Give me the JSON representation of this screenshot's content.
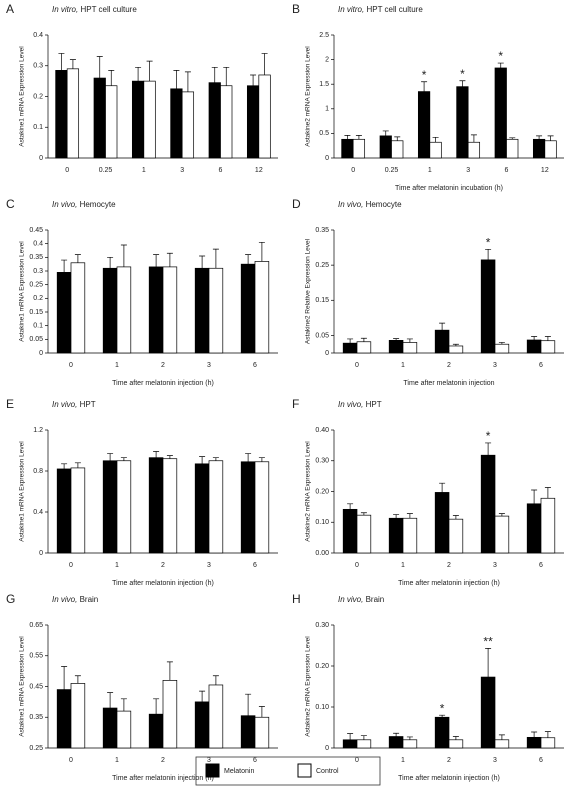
{
  "chart_data": [
    {
      "type": "bar",
      "panel": "A",
      "title_italic": "In vitro,",
      "title": "HPT cell culture",
      "ylabel": "Astakine1 mRNA Expression Level",
      "categories": [
        "0",
        "0.25",
        "1",
        "3",
        "6",
        "12"
      ],
      "ylim": [
        0,
        0.4
      ],
      "yticks": [
        0,
        0.1,
        0.2,
        0.3,
        0.4
      ],
      "series": [
        {
          "name": "Melatonin",
          "color": "#000000",
          "values": [
            0.285,
            0.26,
            0.25,
            0.225,
            0.245,
            0.235
          ],
          "errors": [
            0.055,
            0.07,
            0.045,
            0.06,
            0.05,
            0.035
          ]
        },
        {
          "name": "Control",
          "color": "#ffffff",
          "values": [
            0.29,
            0.235,
            0.25,
            0.215,
            0.235,
            0.27
          ],
          "errors": [
            0.03,
            0.05,
            0.065,
            0.065,
            0.06,
            0.07
          ]
        }
      ]
    },
    {
      "type": "bar",
      "panel": "B",
      "title_italic": "In vitro,",
      "title": "HPT cell culture",
      "ylabel": "Astakine2 mRNA Expression Level",
      "xlabel": "Time after melatonin incubation (h)",
      "categories": [
        "0",
        "0.25",
        "1",
        "3",
        "6",
        "12"
      ],
      "ylim": [
        0,
        2.5
      ],
      "yticks": [
        0,
        0.5,
        1,
        1.5,
        2,
        2.5
      ],
      "series": [
        {
          "name": "Melatonin",
          "color": "#000000",
          "values": [
            0.38,
            0.45,
            1.35,
            1.45,
            1.83,
            0.38
          ],
          "errors": [
            0.08,
            0.1,
            0.2,
            0.12,
            0.1,
            0.07
          ],
          "significance": [
            null,
            null,
            "*",
            "*",
            "*",
            null
          ]
        },
        {
          "name": "Control",
          "color": "#ffffff",
          "values": [
            0.38,
            0.35,
            0.32,
            0.32,
            0.38,
            0.35
          ],
          "errors": [
            0.08,
            0.08,
            0.1,
            0.15,
            0.03,
            0.1
          ]
        }
      ]
    },
    {
      "type": "bar",
      "panel": "C",
      "title_italic": "In vivo,",
      "title": "Hemocyte",
      "ylabel": "Astakine1 mRNA Expression Level",
      "xlabel": "Time after melatonin injection (h)",
      "categories": [
        "0",
        "1",
        "2",
        "3",
        "6"
      ],
      "ylim": [
        0,
        0.45
      ],
      "yticks": [
        0,
        0.05,
        0.1,
        0.15,
        0.2,
        0.25,
        0.3,
        0.35,
        0.4,
        0.45
      ],
      "series": [
        {
          "name": "Melatonin",
          "color": "#000000",
          "values": [
            0.295,
            0.31,
            0.315,
            0.31,
            0.325
          ],
          "errors": [
            0.045,
            0.04,
            0.045,
            0.045,
            0.035
          ]
        },
        {
          "name": "Control",
          "color": "#ffffff",
          "values": [
            0.33,
            0.315,
            0.315,
            0.31,
            0.335
          ],
          "errors": [
            0.03,
            0.08,
            0.05,
            0.07,
            0.07
          ]
        }
      ]
    },
    {
      "type": "bar",
      "panel": "D",
      "title_italic": "In vivo,",
      "title": "Hemocyte",
      "ylabel": "Astakine2 Relative Expression Level",
      "xlabel": "Time after melatonin injection",
      "categories": [
        "0",
        "1",
        "2",
        "3",
        "6"
      ],
      "ylim": [
        0,
        0.35
      ],
      "yticks": [
        0,
        0.05,
        0.15,
        0.25,
        0.35
      ],
      "series": [
        {
          "name": "Melatonin",
          "color": "#000000",
          "values": [
            0.028,
            0.036,
            0.065,
            0.265,
            0.037
          ],
          "errors": [
            0.012,
            0.005,
            0.02,
            0.03,
            0.01
          ],
          "significance": [
            null,
            null,
            null,
            "*",
            null
          ]
        },
        {
          "name": "Control",
          "color": "#ffffff",
          "values": [
            0.032,
            0.03,
            0.02,
            0.025,
            0.035
          ],
          "errors": [
            0.01,
            0.01,
            0.005,
            0.005,
            0.012
          ]
        }
      ]
    },
    {
      "type": "bar",
      "panel": "E",
      "title_italic": "In vivo,",
      "title": "HPT",
      "ylabel": "Astakine1 mRNA Expression Level",
      "xlabel": "Time after melatonin injection (h)",
      "categories": [
        "0",
        "1",
        "2",
        "3",
        "6"
      ],
      "ylim": [
        0,
        1.2
      ],
      "yticks": [
        0,
        0.4,
        0.8,
        1.2
      ],
      "series": [
        {
          "name": "Melatonin",
          "color": "#000000",
          "values": [
            0.82,
            0.9,
            0.93,
            0.87,
            0.89
          ],
          "errors": [
            0.05,
            0.07,
            0.06,
            0.07,
            0.08
          ]
        },
        {
          "name": "Control",
          "color": "#ffffff",
          "values": [
            0.83,
            0.9,
            0.92,
            0.9,
            0.89
          ],
          "errors": [
            0.05,
            0.03,
            0.03,
            0.03,
            0.04
          ]
        }
      ]
    },
    {
      "type": "bar",
      "panel": "F",
      "title_italic": "In vivo,",
      "title": "HPT",
      "ylabel": "Astakine2 mRNA Expression Level",
      "xlabel": "Time after melatonin injection (h)",
      "categories": [
        "0",
        "1",
        "2",
        "3",
        "6"
      ],
      "ylim": [
        0,
        0.4
      ],
      "yticks": [
        {
          "value": 0,
          "label": "0.00"
        },
        {
          "value": 0.1,
          "label": "0.10"
        },
        {
          "value": 0.2,
          "label": "0.20"
        },
        {
          "value": 0.3,
          "label": "0.30"
        },
        {
          "value": 0.4,
          "label": "0.40"
        }
      ],
      "series": [
        {
          "name": "Melatonin",
          "color": "#000000",
          "values": [
            0.142,
            0.113,
            0.197,
            0.318,
            0.16
          ],
          "errors": [
            0.018,
            0.012,
            0.03,
            0.04,
            0.045
          ],
          "significance": [
            null,
            null,
            null,
            "*",
            null
          ]
        },
        {
          "name": "Control",
          "color": "#ffffff",
          "values": [
            0.123,
            0.113,
            0.11,
            0.12,
            0.178
          ],
          "errors": [
            0.008,
            0.015,
            0.012,
            0.008,
            0.035
          ]
        }
      ]
    },
    {
      "type": "bar",
      "panel": "G",
      "title_italic": "In vivo,",
      "title": "Brain",
      "ylabel": "Astakine1 mRNA Expression Level",
      "xlabel": "Time after melatonin injection (h)",
      "categories": [
        "0",
        "1",
        "2",
        "3",
        "6"
      ],
      "ylim": [
        0.25,
        0.65
      ],
      "yticks": [
        0.25,
        0.35,
        0.45,
        0.55,
        0.65
      ],
      "series": [
        {
          "name": "Melatonin",
          "color": "#000000",
          "values": [
            0.44,
            0.38,
            0.36,
            0.4,
            0.355
          ],
          "errors": [
            0.075,
            0.05,
            0.05,
            0.035,
            0.07
          ]
        },
        {
          "name": "Control",
          "color": "#ffffff",
          "values": [
            0.46,
            0.37,
            0.47,
            0.455,
            0.35
          ],
          "errors": [
            0.025,
            0.04,
            0.06,
            0.03,
            0.035
          ]
        }
      ]
    },
    {
      "type": "bar",
      "panel": "H",
      "title_italic": "In vivo,",
      "title": "Brain",
      "ylabel": "Astakine2 mRNA Expression Level",
      "xlabel": "Time after melatonin injection (h)",
      "categories": [
        "0",
        "1",
        "2",
        "3",
        "6"
      ],
      "ylim": [
        0,
        0.3
      ],
      "yticks": [
        0,
        {
          "value": 0.1,
          "label": "0.10"
        },
        {
          "value": 0.2,
          "label": "0.20"
        },
        {
          "value": 0.3,
          "label": "0.30"
        }
      ],
      "series": [
        {
          "name": "Melatonin",
          "color": "#000000",
          "values": [
            0.02,
            0.028,
            0.075,
            0.173,
            0.026
          ],
          "errors": [
            0.015,
            0.008,
            0.005,
            0.07,
            0.013
          ],
          "significance": [
            null,
            null,
            "*",
            "**",
            null
          ]
        },
        {
          "name": "Control",
          "color": "#ffffff",
          "values": [
            0.02,
            0.02,
            0.02,
            0.02,
            0.025
          ],
          "errors": [
            0.01,
            0.007,
            0.008,
            0.012,
            0.015
          ]
        }
      ]
    }
  ]
}
